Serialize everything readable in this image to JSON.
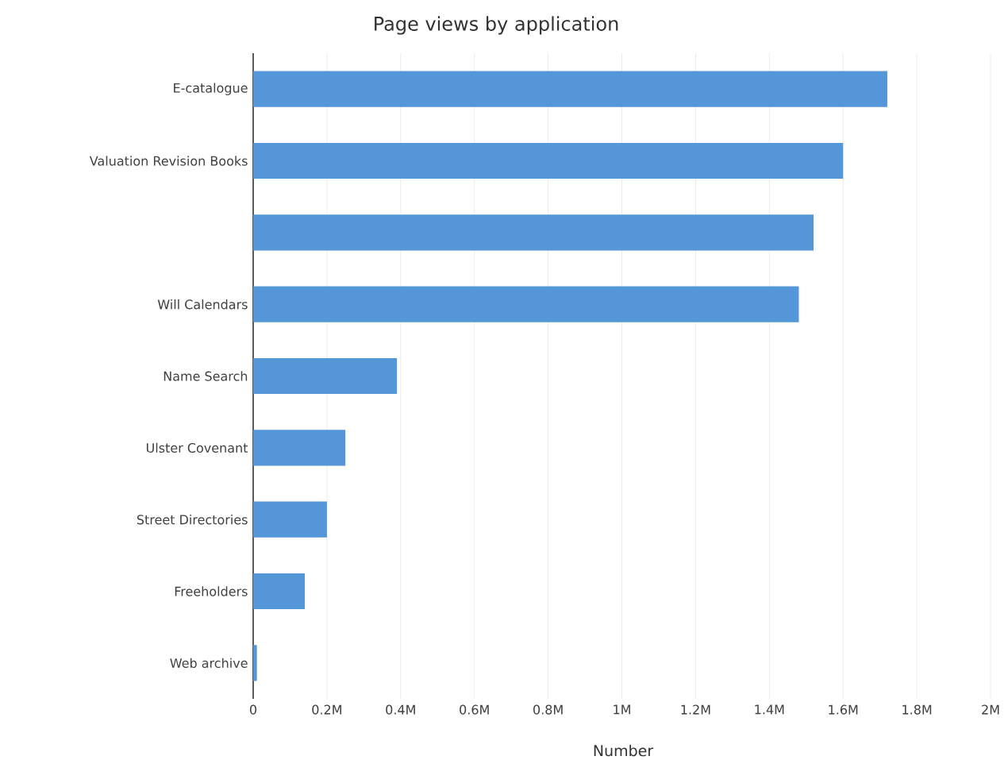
{
  "chart_data": {
    "type": "bar",
    "orientation": "horizontal",
    "title": "Page views by application",
    "xlabel": "Number",
    "categories": [
      "E-catalogue",
      "Valuation Revision Books",
      null,
      "Will Calendars",
      "Name Search",
      "Ulster Covenant",
      "Street Directories",
      "Freeholders",
      "Web archive"
    ],
    "values": [
      1720000,
      1600000,
      1520000,
      1480000,
      390000,
      250000,
      200000,
      140000,
      10000
    ],
    "color": "#5596d8",
    "xlim": [
      0,
      2000000
    ],
    "xticks": [
      0,
      {
        "value": 200000,
        "label": "0.2M"
      },
      {
        "value": 400000,
        "label": "0.4M"
      },
      {
        "value": 600000,
        "label": "0.6M"
      },
      {
        "value": 800000,
        "label": "0.8M"
      },
      {
        "value": 1000000,
        "label": "1M"
      },
      {
        "value": 1200000,
        "label": "1.2M"
      },
      {
        "value": 1400000,
        "label": "1.4M"
      },
      {
        "value": 1600000,
        "label": "1.6M"
      },
      {
        "value": 1800000,
        "label": "1.8M"
      },
      {
        "value": 2000000,
        "label": "2M"
      }
    ],
    "grid": "x"
  }
}
